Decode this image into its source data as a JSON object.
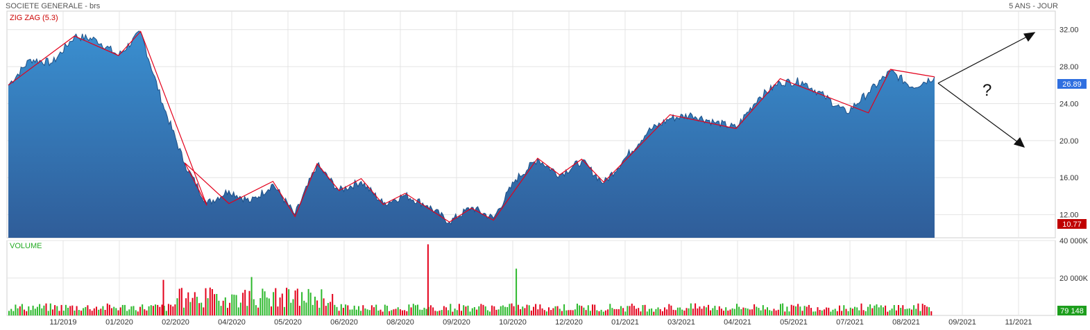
{
  "header": {
    "title": "SOCIETE GENERALE - brs",
    "period": "5 ANS - JOUR"
  },
  "price_panel": {
    "indicator_label": "ZIG ZAG (5.3)",
    "last_price_label": "26.89",
    "low_price_label": "10.77",
    "annotation_text": "?"
  },
  "volume_panel": {
    "label": "VOLUME",
    "last_volume_label": "79 148"
  },
  "colors": {
    "area_top": "#3a8fd0",
    "area_bottom": "#2f5d99",
    "line": "#1d4f86",
    "zigzag": "#e3001b",
    "vol_up": "#2bb82b",
    "vol_down": "#e3001b",
    "grid": "#e4e4e4",
    "last_badge": "#2f6fe0",
    "low_badge": "#c00000",
    "volume_badge": "#1d9e1d",
    "volume_label": "#22aa22",
    "indicator_label": "#cc0000"
  },
  "chart_data": [
    {
      "type": "area",
      "title": "SOCIETE GENERALE - brs",
      "x_ticks": [
        "11/2019",
        "01/2020",
        "02/2020",
        "04/2020",
        "05/2020",
        "06/2020",
        "08/2020",
        "09/2020",
        "10/2020",
        "12/2020",
        "01/2021",
        "03/2021",
        "04/2021",
        "05/2021",
        "07/2021",
        "08/2021",
        "09/2021",
        "11/2021"
      ],
      "ylim": [
        9.5,
        34
      ],
      "y_ticks": [
        12,
        16,
        20,
        24,
        28,
        32
      ],
      "y_tick_labels": [
        "12.00",
        "16.00",
        "20.00",
        "24.00",
        "28.00",
        "32.00"
      ],
      "grid": true,
      "series": [
        {
          "name": "",
          "x": [
            "2019-09",
            "2019-10",
            "2019-11",
            "2019-12",
            "2020-01",
            "2020-02a",
            "2020-02b",
            "2020-03a",
            "2020-03b",
            "2020-04a",
            "2020-04b",
            "2020-05a",
            "2020-05b",
            "2020-06a",
            "2020-06b",
            "2020-07a",
            "2020-07b",
            "2020-08a",
            "2020-08b",
            "2020-09a",
            "2020-09b",
            "2020-10a",
            "2020-10b",
            "2020-11a",
            "2020-11b",
            "2020-12a",
            "2020-12b",
            "2021-01a",
            "2021-01b",
            "2021-02a",
            "2021-02b",
            "2021-03a",
            "2021-03b",
            "2021-04a",
            "2021-04b",
            "2021-05a",
            "2021-05b",
            "2021-06a",
            "2021-06b",
            "2021-07a",
            "2021-07b",
            "2021-08a",
            "2021-08b"
          ],
          "values": [
            26.0,
            28.8,
            28.4,
            31.3,
            30.9,
            29.2,
            31.7,
            24.0,
            17.5,
            13.2,
            14.6,
            13.4,
            15.3,
            12.0,
            17.4,
            14.6,
            15.6,
            13.2,
            14.1,
            13.0,
            11.2,
            12.8,
            11.6,
            15.8,
            18.0,
            16.3,
            17.8,
            15.4,
            18.2,
            21.0,
            22.4,
            22.8,
            22.0,
            21.4,
            24.6,
            26.3,
            26.4,
            24.8,
            23.0,
            25.2,
            27.5,
            25.8,
            26.89
          ]
        }
      ],
      "zigzag": [
        {
          "x": "2019-09",
          "y": 26.0
        },
        {
          "x": "2019-12",
          "y": 31.3
        },
        {
          "x": "2020-02a",
          "y": 29.2
        },
        {
          "x": "2020-02b",
          "y": 31.8
        },
        {
          "x": "2020-04a",
          "y": 13.0
        },
        {
          "x": "2020-03b",
          "y": 17.6
        },
        {
          "x": "2020-04b",
          "y": 13.2
        },
        {
          "x": "2020-05b",
          "y": 15.6
        },
        {
          "x": "2020-06a",
          "y": 11.8
        },
        {
          "x": "2020-06b",
          "y": 17.5
        },
        {
          "x": "2020-07a",
          "y": 14.6
        },
        {
          "x": "2020-07b",
          "y": 15.9
        },
        {
          "x": "2020-08a",
          "y": 13.1
        },
        {
          "x": "2020-08b",
          "y": 14.3
        },
        {
          "x": "2020-09b",
          "y": 11.2
        },
        {
          "x": "2020-10a",
          "y": 12.7
        },
        {
          "x": "2020-10b",
          "y": 11.4
        },
        {
          "x": "2020-11b",
          "y": 18.1
        },
        {
          "x": "2020-12a",
          "y": 16.3
        },
        {
          "x": "2020-12b",
          "y": 18.0
        },
        {
          "x": "2021-01a",
          "y": 15.5
        },
        {
          "x": "2021-02b",
          "y": 22.8
        },
        {
          "x": "2021-04a",
          "y": 21.3
        },
        {
          "x": "2021-05a",
          "y": 26.7
        },
        {
          "x": "2021-07a",
          "y": 23.0
        },
        {
          "x": "2021-07b",
          "y": 27.7
        },
        {
          "x": "2021-08b",
          "y": 26.89
        }
      ]
    },
    {
      "type": "bar",
      "title": "VOLUME",
      "ylim": [
        0,
        40000
      ],
      "y_ticks": [
        20000,
        40000
      ],
      "y_tick_labels": [
        "20 000K",
        "40 000K"
      ],
      "grid": true,
      "notable_bars": [
        {
          "period": "2020-09",
          "value": 38000,
          "direction": "down"
        },
        {
          "period": "2020-11",
          "value": 25000,
          "direction": "up"
        },
        {
          "period": "2020-05",
          "value": 20500,
          "direction": "up"
        },
        {
          "period": "2020-03",
          "value": 19000,
          "direction": "down"
        }
      ]
    }
  ]
}
